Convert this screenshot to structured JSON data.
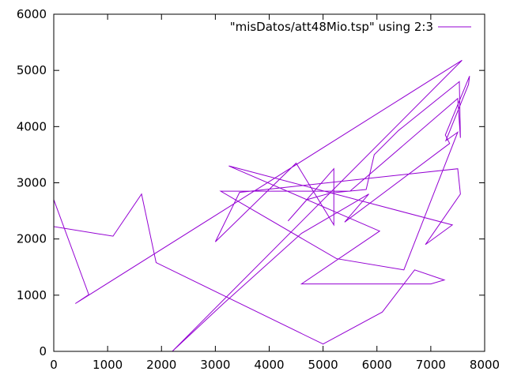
{
  "chart_data": {
    "type": "line",
    "title": "",
    "xlabel": "",
    "ylabel": "",
    "xlim": [
      0,
      8000
    ],
    "ylim": [
      0,
      6000
    ],
    "x_ticks": [
      0,
      1000,
      2000,
      3000,
      4000,
      5000,
      6000,
      7000,
      8000
    ],
    "y_ticks": [
      0,
      1000,
      2000,
      3000,
      4000,
      5000,
      6000
    ],
    "x_tick_labels": [
      "0",
      "1000",
      "2000",
      "3000",
      "4000",
      "5000",
      "6000",
      "7000",
      "8000"
    ],
    "y_tick_labels": [
      "0",
      "1000",
      "2000",
      "3000",
      "4000",
      "5000",
      "6000"
    ],
    "grid": false,
    "legend_position": "top-right",
    "series": [
      {
        "name": "\"misDatos/att48Mio.tsp\" using 2:3",
        "color": "#9400d3",
        "x": [
          0,
          0,
          1100,
          1630,
          1900,
          5000,
          6100,
          6700,
          7250,
          7000,
          4600,
          6050,
          3250,
          7400,
          6900,
          7550,
          7500,
          3450,
          3000,
          4500,
          5200,
          5200,
          4350,
          4700,
          5150,
          5800,
          5950,
          6400,
          7530,
          7550,
          7500,
          5500,
          3100,
          5250,
          6500,
          7500,
          7280,
          7700,
          7720,
          7270,
          7350,
          5400,
          5850,
          4600,
          3150,
          2200,
          7580,
          400,
          650,
          0
        ],
        "y": [
          2700,
          2220,
          2050,
          2800,
          1580,
          130,
          700,
          1450,
          1270,
          1200,
          1200,
          2140,
          3300,
          2250,
          1900,
          2800,
          3250,
          2830,
          1950,
          3350,
          2250,
          3250,
          2320,
          2700,
          2820,
          2880,
          3500,
          3930,
          4800,
          3800,
          4500,
          2850,
          2850,
          1650,
          1450,
          3900,
          3750,
          4750,
          4900,
          3850,
          3700,
          2300,
          2800,
          2100,
          850,
          0,
          5180,
          850,
          1010,
          2700
        ]
      }
    ]
  }
}
